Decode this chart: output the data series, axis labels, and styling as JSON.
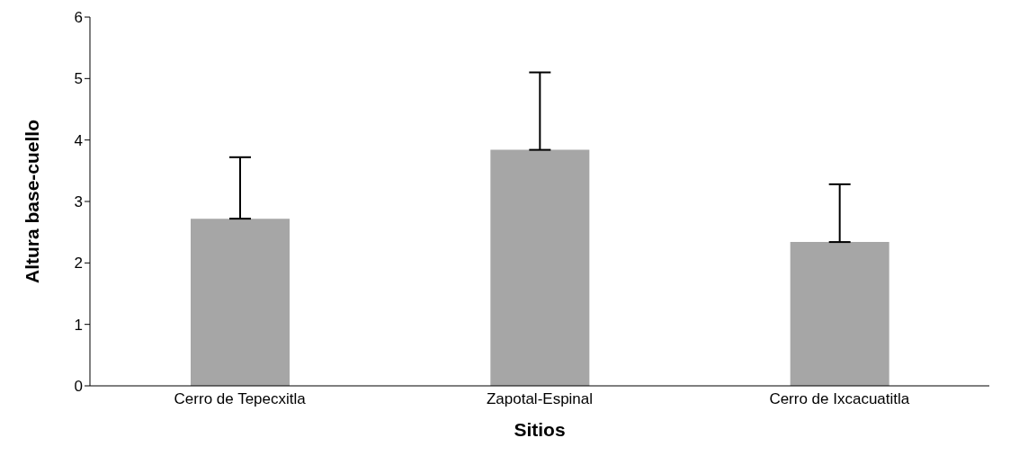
{
  "chart_data": {
    "type": "bar",
    "xlabel": "Sitios",
    "ylabel": "Altura base-cuello",
    "categories": [
      "Cerro de Tepecxitla",
      "Zapotal-Espinal",
      "Cerro de Ixcacuatitla"
    ],
    "values": [
      2.72,
      3.84,
      2.34
    ],
    "color": "#a6a6a6",
    "errors": [
      [
        2.72,
        3.72
      ],
      [
        3.84,
        5.1
      ],
      [
        2.34,
        3.28
      ]
    ],
    "ylim": [
      0,
      6
    ],
    "yticks": [
      0,
      1,
      2,
      3,
      4,
      5,
      6
    ],
    "grid": false,
    "legend": false
  }
}
